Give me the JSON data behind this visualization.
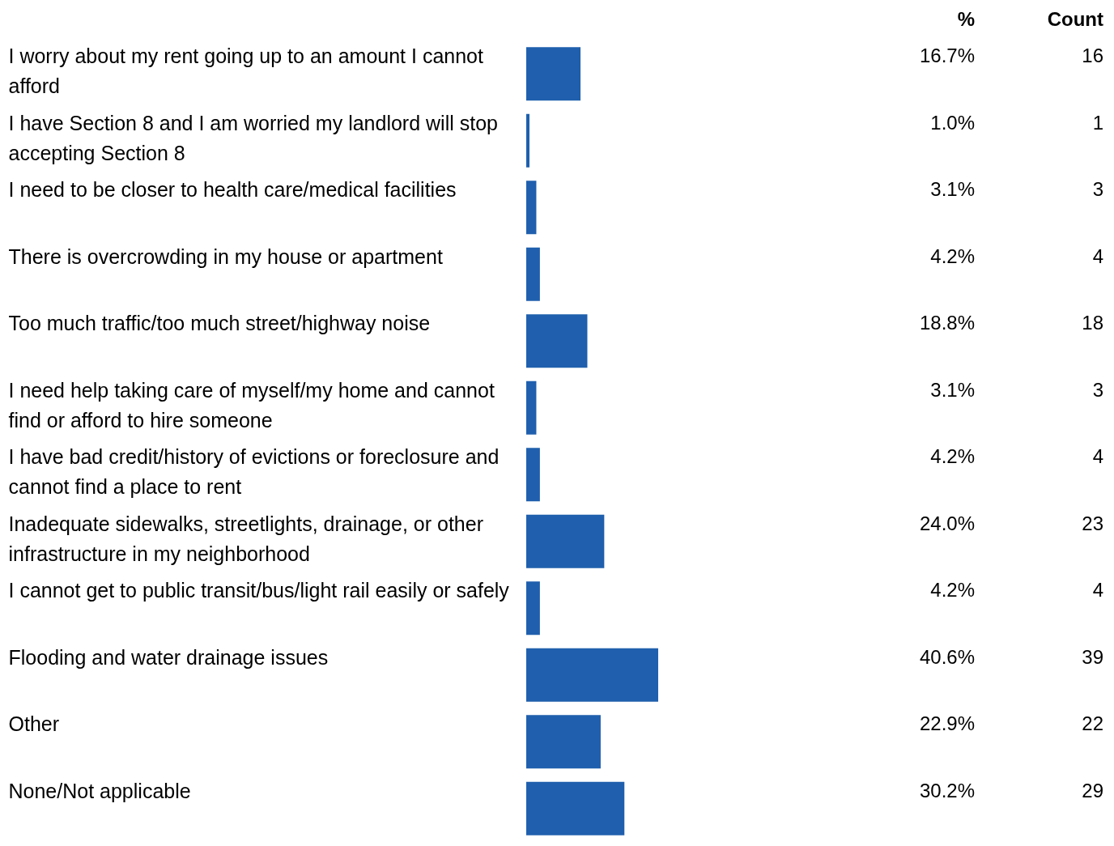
{
  "chart_data": {
    "type": "bar",
    "orientation": "horizontal",
    "categories": [
      "I worry about my rent going up to an amount I cannot afford",
      "I have Section 8 and I am worried my landlord will stop accepting Section 8",
      "I need to be closer to health care/medical facilities",
      "There is overcrowding in my house or apartment",
      "Too much traffic/too much street/highway noise",
      "I need help taking care of myself/my home and cannot find or afford to hire someone",
      "I have bad credit/history of evictions or foreclosure and cannot find a place to rent",
      "Inadequate sidewalks, streetlights, drainage, or other infrastructure in my neighborhood",
      "I cannot get to public transit/bus/light rail easily or safely",
      "Flooding and water drainage issues",
      "Other",
      "None/Not applicable"
    ],
    "series": [
      {
        "name": "%",
        "color": "#1f5fad",
        "values": [
          16.7,
          1.0,
          3.1,
          4.2,
          18.8,
          3.1,
          4.2,
          24.0,
          4.2,
          40.6,
          22.9,
          30.2
        ],
        "value_labels": [
          "16.7%",
          "1.0%",
          "3.1%",
          "4.2%",
          "18.8%",
          "3.1%",
          "4.2%",
          "24.0%",
          "4.2%",
          "40.6%",
          "22.9%",
          "30.2%"
        ]
      }
    ],
    "annotations": [
      "Count",
      "16",
      "1",
      "3",
      "4",
      "18",
      "3",
      "4",
      "23",
      "4",
      "39",
      "22",
      "29"
    ],
    "grid": false
  }
}
